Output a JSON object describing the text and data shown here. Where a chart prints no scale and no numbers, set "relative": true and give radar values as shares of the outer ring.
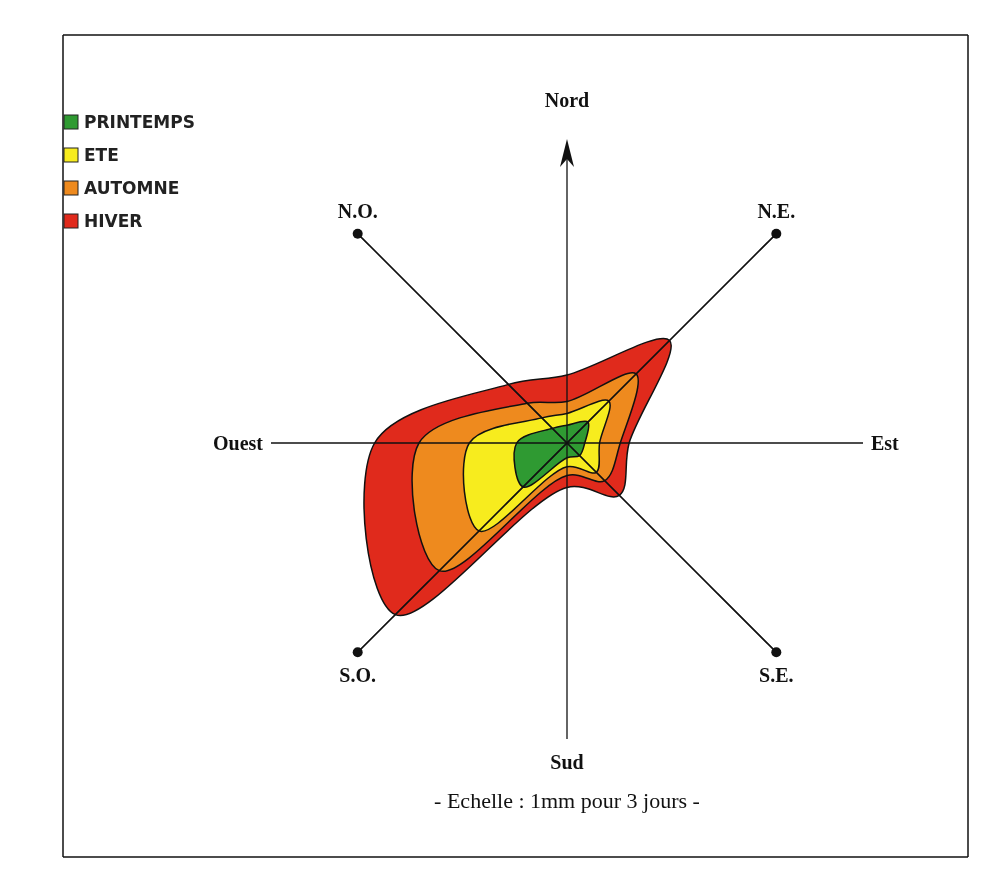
{
  "chart_data": {
    "type": "radar",
    "relative": true,
    "legend": "top left",
    "categories": [
      "Nord",
      "N.E.",
      "Est",
      "S.E.",
      "Sud",
      "S.O.",
      "Ouest",
      "N.O."
    ],
    "series": [
      {
        "name": "HIVER",
        "color": "#e02a1c",
        "values": [
          0.23,
          0.49,
          0.21,
          0.25,
          0.15,
          0.82,
          0.65,
          0.28
        ]
      },
      {
        "name": "AUTOMNE",
        "color": "#ee8a1e",
        "values": [
          0.14,
          0.33,
          0.18,
          0.18,
          0.11,
          0.61,
          0.5,
          0.19
        ]
      },
      {
        "name": "ETE",
        "color": "#f7ec1e",
        "values": [
          0.1,
          0.2,
          0.11,
          0.14,
          0.08,
          0.42,
          0.33,
          0.12
        ]
      },
      {
        "name": "PRINTEMPS",
        "color": "#2f9a32",
        "values": [
          0.06,
          0.1,
          0.06,
          0.06,
          0.05,
          0.21,
          0.17,
          0.07
        ]
      }
    ],
    "annotations": [
      "- Echelle : 1mm pour 3 jours -"
    ]
  }
}
